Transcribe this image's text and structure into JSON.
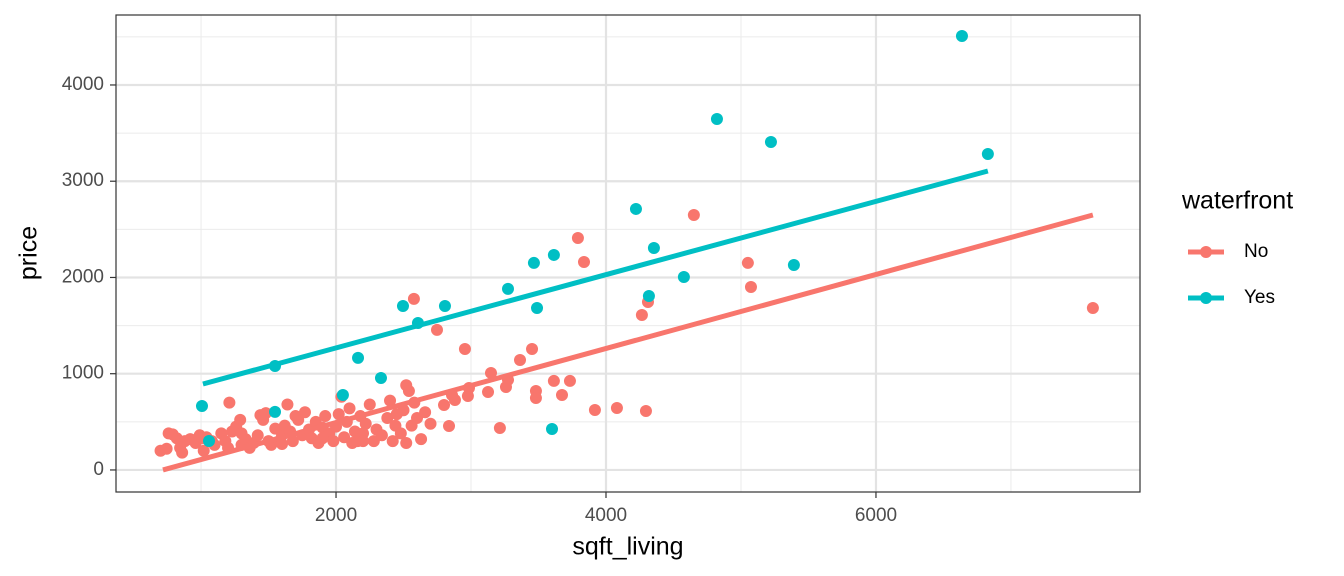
{
  "chart_data": {
    "type": "scatter",
    "x_label": "sqft_living",
    "y_label": "price",
    "legend_title": "waterfront",
    "legend_position": "right",
    "grid": true,
    "xlim": [
      370,
      7956
    ],
    "ylim": [
      -229,
      4727
    ],
    "xticks": [
      2000,
      4000,
      6000
    ],
    "yticks": [
      0,
      1000,
      2000,
      3000,
      4000
    ],
    "x_minor_breaks": [
      1000,
      3000,
      5000,
      7000
    ],
    "y_minor_breaks": [
      500,
      1500,
      2500,
      3500,
      4500
    ],
    "series": [
      {
        "name": "No",
        "color": "#F8766D",
        "x": [
          700,
          745,
          760,
          790,
          820,
          845,
          860,
          880,
          920,
          960,
          990,
          1020,
          1040,
          1080,
          1100,
          1150,
          1180,
          1200,
          1210,
          1230,
          1260,
          1290,
          1300,
          1330,
          1360,
          1390,
          1420,
          1440,
          1460,
          1480,
          1500,
          1520,
          1550,
          1580,
          1600,
          1620,
          1640,
          1660,
          1680,
          1700,
          1720,
          1750,
          1770,
          1800,
          1820,
          1850,
          1870,
          1900,
          1920,
          1950,
          1980,
          2000,
          2020,
          2040,
          2060,
          2080,
          2100,
          2120,
          2140,
          2160,
          2180,
          2200,
          2220,
          2250,
          2280,
          2300,
          2340,
          2380,
          2400,
          2420,
          2440,
          2480,
          2500,
          2520,
          2540,
          2560,
          2580,
          2600,
          2630,
          2660,
          2700,
          1010,
          1300,
          1600,
          1900,
          2200,
          2450,
          2520,
          2577,
          2748,
          2800,
          2837,
          2859,
          2881,
          2955,
          2977,
          2985,
          3126,
          3148,
          3214,
          3259,
          3274,
          3363,
          3452,
          3481,
          3481,
          3614,
          3674,
          3733,
          3792,
          3837,
          3918,
          4081,
          4266,
          4296,
          4311,
          4651,
          5051,
          5074,
          7607
        ],
        "values": [
          200,
          220,
          380,
          370,
          330,
          230,
          180,
          300,
          320,
          280,
          360,
          200,
          340,
          300,
          260,
          380,
          300,
          230,
          700,
          400,
          450,
          520,
          260,
          320,
          230,
          280,
          360,
          570,
          520,
          590,
          300,
          260,
          430,
          300,
          360,
          460,
          680,
          400,
          300,
          560,
          520,
          360,
          600,
          420,
          330,
          500,
          280,
          440,
          560,
          380,
          300,
          450,
          580,
          760,
          340,
          500,
          640,
          280,
          400,
          300,
          560,
          380,
          480,
          680,
          300,
          420,
          360,
          540,
          720,
          300,
          460,
          380,
          620,
          880,
          820,
          460,
          700,
          540,
          320,
          600,
          480,
          330,
          380,
          270,
          330,
          300,
          580,
          280,
          1777,
          1455,
          675,
          457,
          779,
          727,
          1257,
          769,
          852,
          810,
          1008,
          436,
          862,
          935,
          1143,
          1257,
          821,
          748,
          925,
          779,
          925,
          2410,
          2161,
          623,
          644,
          1610,
          613,
          1745,
          2649,
          2151,
          1901,
          1683
        ],
        "fit_x": [
          718,
          7607
        ],
        "fit_values": [
          0,
          2649
        ]
      },
      {
        "name": "Yes",
        "color": "#00BFC4",
        "x": [
          1007,
          1059,
          1548,
          1548,
          2051,
          2163,
          2333,
          2496,
          2607,
          2807,
          3274,
          3466,
          3489,
          3614,
          3600,
          4222,
          4318,
          4355,
          4577,
          4822,
          5222,
          5392,
          6637,
          6829
        ],
        "values": [
          665,
          301,
          1080,
          603,
          779,
          1164,
          956,
          1704,
          1527,
          1704,
          1881,
          2151,
          1683,
          2234,
          426,
          2712,
          1808,
          2306,
          2005,
          3647,
          3408,
          2130,
          4509,
          3283
        ],
        "fit_x": [
          1014,
          6829
        ],
        "fit_values": [
          893,
          3106
        ]
      }
    ]
  }
}
